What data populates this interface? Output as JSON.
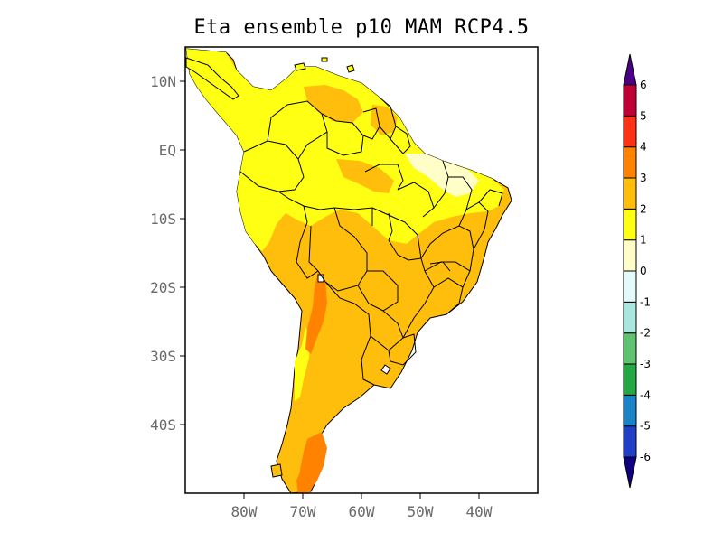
{
  "title": "Eta ensemble p10 MAM RCP4.5",
  "map": {
    "lat_range": [
      -50,
      15
    ],
    "lon_range": [
      -90,
      -30
    ],
    "lat_ticks": [
      {
        "value": 10,
        "label": "10N"
      },
      {
        "value": 0,
        "label": "EQ"
      },
      {
        "value": -10,
        "label": "10S"
      },
      {
        "value": -20,
        "label": "20S"
      },
      {
        "value": -30,
        "label": "30S"
      },
      {
        "value": -40,
        "label": "40S"
      }
    ],
    "lon_ticks": [
      {
        "value": -80,
        "label": "80W"
      },
      {
        "value": -70,
        "label": "70W"
      },
      {
        "value": -60,
        "label": "60W"
      },
      {
        "value": -50,
        "label": "50W"
      },
      {
        "value": -40,
        "label": "40W"
      }
    ],
    "ocean_color": "#ffffff",
    "border_color": "#000000"
  },
  "colorbar": {
    "orientation": "vertical",
    "levels": [
      -6,
      -5,
      -4,
      -3,
      -2,
      -1,
      0,
      1,
      2,
      3,
      4,
      5,
      6
    ],
    "level_labels": [
      "-6",
      "-5",
      "-4",
      "-3",
      "-2",
      "-1",
      "0",
      "1",
      "2",
      "3",
      "4",
      "5",
      "6"
    ],
    "colors": [
      "#1e3fc6",
      "#1b84c9",
      "#24a843",
      "#5ec26f",
      "#a9e6de",
      "#e2fbf8",
      "#fffdc8",
      "#ffff14",
      "#ffbe0b",
      "#ff8300",
      "#ff3214",
      "#c00036"
    ],
    "under_color": "#0e0080",
    "over_color": "#4a0086"
  }
}
